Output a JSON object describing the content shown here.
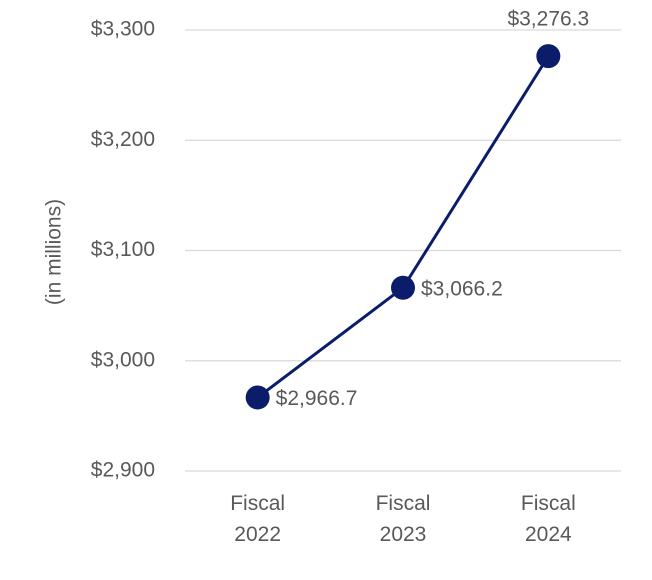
{
  "chart_data": {
    "type": "line",
    "y_axis_label": "(in millions)",
    "categories": [
      "Fiscal 2022",
      "Fiscal 2023",
      "Fiscal 2024"
    ],
    "values": [
      2966.7,
      3066.2,
      3276.3
    ],
    "value_labels": [
      "$2,966.7",
      "$3,066.2",
      "$3,276.3"
    ],
    "color": "#0b1c6b",
    "ylim": [
      2900,
      3300
    ],
    "yticks": [
      {
        "value": 2900,
        "label": "$2,900"
      },
      {
        "value": 3000,
        "label": "$3,000"
      },
      {
        "value": 3100,
        "label": "$3,100"
      },
      {
        "value": 3200,
        "label": "$3,200"
      },
      {
        "value": 3300,
        "label": "$3,300"
      }
    ],
    "grid": true
  }
}
